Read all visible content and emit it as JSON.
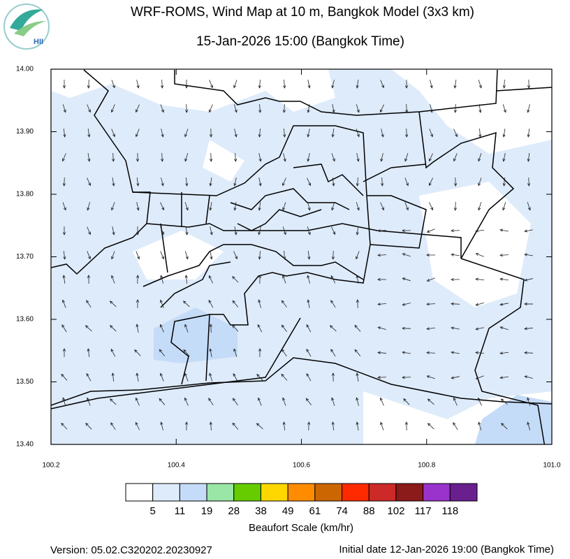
{
  "header": {
    "title": "WRF-ROMS, Wind Map at 10 m, Bangkok Model (3x3 km)",
    "subtitle": "15-Jan-2026 15:00 (Bangkok Time)",
    "logo_text": "HII"
  },
  "map": {
    "xlim": [
      100.2,
      101.0
    ],
    "ylim": [
      13.4,
      14.0
    ],
    "xticks": [
      100.2,
      100.4,
      100.6,
      100.8,
      {
        "value": 101.0,
        "label": "101.0"
      }
    ],
    "yticks": [
      {
        "value": 13.4,
        "label": "13.40"
      },
      {
        "value": 13.5,
        "label": "13.50"
      },
      {
        "value": 13.6,
        "label": "13.60"
      },
      {
        "value": 13.7,
        "label": "13.70"
      },
      {
        "value": 13.8,
        "label": "13.80"
      },
      {
        "value": 13.9,
        "label": "13.90"
      },
      {
        "value": 14.0,
        "label": "14.00"
      }
    ]
  },
  "colorbar": {
    "title": "Beaufort Scale (km/hr)",
    "colors": [
      "#ffffff",
      "#deebfb",
      "#c5dcf8",
      "#99e6a6",
      "#66cc00",
      "#ffd700",
      "#ff8c00",
      "#cc6600",
      "#ff2a00",
      "#cc2929",
      "#8b1a1a",
      "#9933cc",
      "#6a1f8f"
    ],
    "labels": [
      5,
      11,
      19,
      28,
      38,
      49,
      61,
      74,
      88,
      102,
      117,
      118
    ]
  },
  "footer": {
    "version": "Version: 05.02.C320202.20230927",
    "initial": "Initial date 12-Jan-2026 19:00 (Bangkok Time)"
  }
}
